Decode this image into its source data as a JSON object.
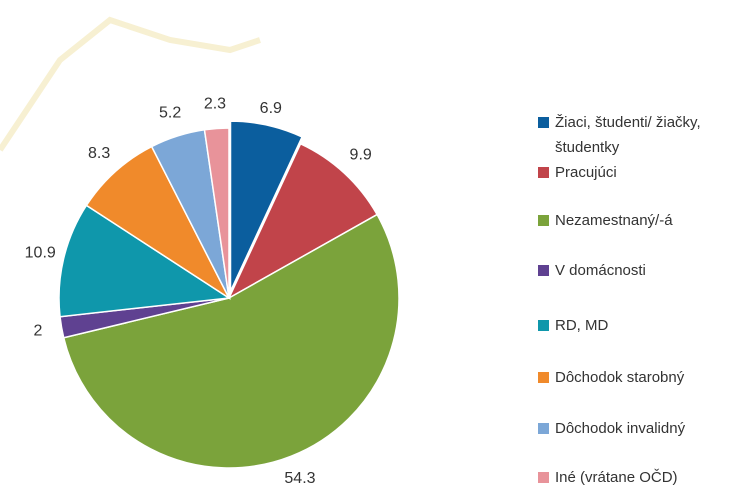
{
  "chart_data": {
    "type": "pie",
    "categories": [
      "Žiaci, študenti/ žiačky, študentky",
      "Pracujúci",
      "Nezamestnaný/-á",
      "V domácnosti",
      "RD, MD",
      "Dôchodok starobný",
      "Dôchodok invalidný",
      "Iné (vrátane OČD)"
    ],
    "values": [
      6.9,
      9.9,
      54.3,
      2,
      10.9,
      8.3,
      5.2,
      2.3
    ],
    "colors": [
      "#0b5e9e",
      "#c1444a",
      "#7ba33b",
      "#5f4191",
      "#0f97ab",
      "#f08a2b",
      "#7ca7d7",
      "#e8939a"
    ],
    "legend": "right"
  }
}
